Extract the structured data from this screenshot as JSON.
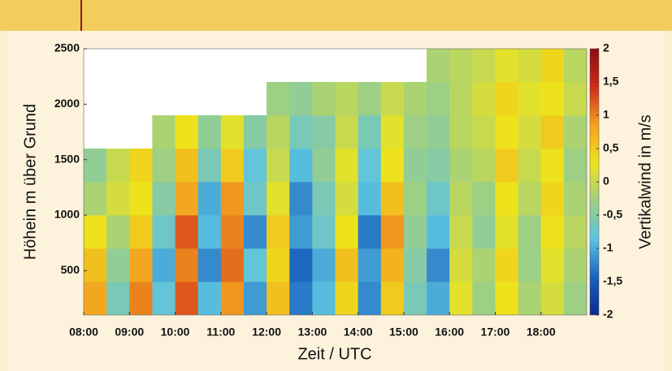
{
  "chart_data": {
    "type": "heatmap",
    "xlabel": "Zeit / UTC",
    "ylabel": "Höhein m über Grund",
    "colorbar_label": "Vertikalwind in m/s",
    "x": [
      8.0,
      8.5,
      9.0,
      9.5,
      10.0,
      10.5,
      11.0,
      11.5,
      12.0,
      12.5,
      13.0,
      13.5,
      14.0,
      14.5,
      15.0,
      15.5,
      16.0,
      16.5,
      17.0,
      17.5,
      18.0,
      18.5
    ],
    "y": [
      100,
      400,
      700,
      1000,
      1300,
      1600,
      1900,
      2200
    ],
    "z": [
      [
        0.8,
        -0.6,
        1.0,
        -0.8,
        1.2,
        -0.9,
        0.9,
        -1.1,
        0.6,
        -1.3,
        -0.9,
        0.4,
        -1.2,
        0.5,
        -0.6,
        -1.0,
        0.2,
        -0.3,
        0.3,
        -0.2,
        0.1,
        -0.3
      ],
      [
        0.6,
        -0.4,
        0.8,
        -1.0,
        1.0,
        -1.2,
        1.1,
        -0.8,
        0.4,
        -1.4,
        -1.0,
        0.6,
        -1.1,
        0.7,
        -0.5,
        -1.2,
        0.1,
        -0.2,
        0.4,
        -0.3,
        0.2,
        -0.2
      ],
      [
        0.3,
        -0.2,
        0.5,
        -0.7,
        1.2,
        -0.9,
        1.0,
        -1.2,
        0.5,
        -1.1,
        -0.7,
        0.3,
        -1.3,
        0.9,
        -0.4,
        -0.9,
        0.0,
        -0.4,
        0.2,
        -0.3,
        0.3,
        -0.1
      ],
      [
        -0.2,
        0.1,
        0.3,
        -0.5,
        0.8,
        -1.0,
        0.9,
        -0.7,
        0.2,
        -1.2,
        -0.6,
        0.1,
        -0.9,
        0.6,
        -0.3,
        -0.7,
        -0.1,
        -0.3,
        0.3,
        -0.1,
        0.4,
        -0.2
      ],
      [
        -0.4,
        0.0,
        0.4,
        -0.3,
        0.6,
        -0.6,
        0.5,
        -0.8,
        0.0,
        -0.9,
        -0.4,
        0.2,
        -0.8,
        0.3,
        -0.4,
        -0.5,
        -0.2,
        -0.1,
        0.5,
        0.0,
        0.3,
        -0.3
      ],
      [
        null,
        null,
        null,
        -0.2,
        0.3,
        -0.4,
        0.2,
        -0.5,
        -0.1,
        -0.6,
        -0.5,
        0.0,
        -0.6,
        0.2,
        -0.3,
        -0.4,
        -0.1,
        0.0,
        0.3,
        0.1,
        0.5,
        -0.2
      ],
      [
        null,
        null,
        null,
        null,
        null,
        null,
        null,
        null,
        -0.3,
        -0.4,
        -0.2,
        -0.1,
        -0.3,
        0.0,
        -0.2,
        -0.3,
        -0.1,
        0.1,
        0.4,
        0.2,
        0.3,
        0.0
      ],
      [
        null,
        null,
        null,
        null,
        null,
        null,
        null,
        null,
        null,
        null,
        null,
        null,
        null,
        null,
        null,
        -0.2,
        -0.1,
        0.0,
        0.2,
        0.1,
        0.4,
        -0.1
      ]
    ],
    "xlim": [
      8,
      19
    ],
    "ylim": [
      100,
      2500
    ],
    "zlim": [
      -2,
      2
    ],
    "xticks": [
      {
        "value": 8,
        "label": "08:00"
      },
      {
        "value": 9,
        "label": "09:00"
      },
      {
        "value": 10,
        "label": "10:00"
      },
      {
        "value": 11,
        "label": "11:00"
      },
      {
        "value": 12,
        "label": "12:00"
      },
      {
        "value": 13,
        "label": "13:00"
      },
      {
        "value": 14,
        "label": "14:00"
      },
      {
        "value": 15,
        "label": "15:00"
      },
      {
        "value": 16,
        "label": "16:00"
      },
      {
        "value": 17,
        "label": "17:00"
      },
      {
        "value": 18,
        "label": "18:00"
      }
    ],
    "yticks": [
      500,
      1000,
      1500,
      2000,
      2500
    ],
    "zticks": [
      -2,
      {
        "value": -1.5,
        "label": "-1,5"
      },
      -1,
      {
        "value": -0.5,
        "label": "-0,5"
      },
      0,
      {
        "value": 0.5,
        "label": "0,5"
      },
      1,
      {
        "value": 1.5,
        "label": "1,5"
      },
      2
    ],
    "colormap": [
      "#0a2a8c",
      "#1a64c0",
      "#5cc4e0",
      "#9fcf82",
      "#eee41c",
      "#f3a020",
      "#cf2a18",
      "#8a0f12"
    ]
  }
}
